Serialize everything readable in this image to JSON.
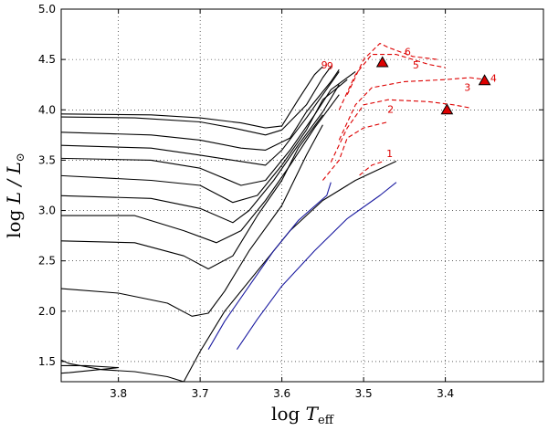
{
  "chart_data": {
    "type": "line",
    "title": "",
    "xlabel_base": "log ",
    "xlabel_var": "T",
    "xlabel_sub": "eff",
    "ylabel_base": "log ",
    "ylabel_var": "L / L",
    "ylabel_sub": "⊙",
    "xlim": [
      3.87,
      3.28
    ],
    "ylim": [
      1.3,
      5.0
    ],
    "grid": true,
    "xticks": [
      3.8,
      3.7,
      3.6,
      3.5,
      3.4
    ],
    "xtick_labels": [
      "3.8",
      "3.7",
      "3.6",
      "3.5",
      "3.4"
    ],
    "yticks": [
      1.5,
      2.0,
      2.5,
      3.0,
      3.5,
      4.0,
      4.5,
      5.0
    ],
    "ytick_labels": [
      "1.5",
      "2.0",
      "2.5",
      "3.0",
      "3.5",
      "4.0",
      "4.5",
      "5.0"
    ],
    "colors": {
      "tracks": "#000000",
      "blue": "#1a1aa0",
      "red": "#dd0000",
      "marker": "#dd0000"
    },
    "series": [
      {
        "name": "track-1",
        "color": "black",
        "points": [
          [
            3.88,
            1.55
          ],
          [
            3.86,
            1.48
          ],
          [
            3.82,
            1.42
          ],
          [
            3.78,
            1.4
          ],
          [
            3.74,
            1.35
          ],
          [
            3.72,
            1.3
          ]
        ]
      },
      {
        "name": "track-2",
        "color": "black",
        "points": [
          [
            3.88,
            1.46
          ],
          [
            3.84,
            1.46
          ],
          [
            3.8,
            1.44
          ],
          [
            3.86,
            1.39
          ],
          [
            3.88,
            1.38
          ]
        ]
      },
      {
        "name": "track-3",
        "color": "black",
        "points": [
          [
            3.88,
            2.23
          ],
          [
            3.8,
            2.18
          ],
          [
            3.74,
            2.08
          ],
          [
            3.71,
            1.95
          ],
          [
            3.69,
            1.98
          ],
          [
            3.67,
            2.2
          ],
          [
            3.64,
            2.6
          ],
          [
            3.6,
            3.05
          ],
          [
            3.57,
            3.55
          ],
          [
            3.55,
            3.85
          ]
        ]
      },
      {
        "name": "track-4",
        "color": "black",
        "points": [
          [
            3.88,
            2.7
          ],
          [
            3.78,
            2.68
          ],
          [
            3.72,
            2.55
          ],
          [
            3.69,
            2.42
          ],
          [
            3.66,
            2.55
          ],
          [
            3.63,
            2.95
          ],
          [
            3.6,
            3.3
          ],
          [
            3.58,
            3.62
          ],
          [
            3.55,
            3.95
          ]
        ]
      },
      {
        "name": "track-5",
        "color": "black",
        "points": [
          [
            3.88,
            2.95
          ],
          [
            3.78,
            2.95
          ],
          [
            3.72,
            2.8
          ],
          [
            3.68,
            2.68
          ],
          [
            3.65,
            2.8
          ],
          [
            3.62,
            3.1
          ],
          [
            3.59,
            3.45
          ],
          [
            3.56,
            3.82
          ],
          [
            3.53,
            4.15
          ]
        ]
      },
      {
        "name": "track-6",
        "color": "black",
        "points": [
          [
            3.88,
            3.15
          ],
          [
            3.76,
            3.12
          ],
          [
            3.7,
            3.02
          ],
          [
            3.66,
            2.88
          ],
          [
            3.64,
            3.0
          ],
          [
            3.61,
            3.3
          ],
          [
            3.58,
            3.65
          ],
          [
            3.55,
            3.98
          ],
          [
            3.53,
            4.25
          ]
        ]
      },
      {
        "name": "track-7",
        "color": "black",
        "points": [
          [
            3.88,
            3.35
          ],
          [
            3.76,
            3.3
          ],
          [
            3.7,
            3.25
          ],
          [
            3.66,
            3.08
          ],
          [
            3.63,
            3.15
          ],
          [
            3.6,
            3.45
          ],
          [
            3.57,
            3.8
          ],
          [
            3.55,
            4.1
          ],
          [
            3.52,
            4.3
          ]
        ]
      },
      {
        "name": "track-8",
        "color": "black",
        "points": [
          [
            3.88,
            3.52
          ],
          [
            3.76,
            3.5
          ],
          [
            3.7,
            3.42
          ],
          [
            3.65,
            3.25
          ],
          [
            3.62,
            3.3
          ],
          [
            3.59,
            3.6
          ],
          [
            3.56,
            3.95
          ],
          [
            3.54,
            4.2
          ],
          [
            3.51,
            4.38
          ]
        ]
      },
      {
        "name": "track-9",
        "color": "black",
        "points": [
          [
            3.88,
            3.65
          ],
          [
            3.76,
            3.62
          ],
          [
            3.7,
            3.55
          ],
          [
            3.66,
            3.5
          ],
          [
            3.62,
            3.45
          ],
          [
            3.6,
            3.6
          ],
          [
            3.57,
            3.92
          ],
          [
            3.55,
            4.15
          ],
          [
            3.53,
            4.38
          ]
        ]
      },
      {
        "name": "track-10",
        "color": "black",
        "points": [
          [
            3.88,
            3.78
          ],
          [
            3.76,
            3.75
          ],
          [
            3.7,
            3.7
          ],
          [
            3.65,
            3.62
          ],
          [
            3.62,
            3.6
          ],
          [
            3.59,
            3.72
          ],
          [
            3.57,
            3.98
          ],
          [
            3.54,
            4.28
          ],
          [
            3.53,
            4.4
          ]
        ]
      },
      {
        "name": "track-11",
        "color": "black",
        "points": [
          [
            3.88,
            3.93
          ],
          [
            3.78,
            3.92
          ],
          [
            3.7,
            3.88
          ],
          [
            3.66,
            3.82
          ],
          [
            3.62,
            3.75
          ],
          [
            3.6,
            3.8
          ],
          [
            3.57,
            4.05
          ],
          [
            3.55,
            4.32
          ],
          [
            3.54,
            4.43
          ]
        ]
      },
      {
        "name": "track-12",
        "color": "black",
        "points": [
          [
            3.88,
            3.96
          ],
          [
            3.76,
            3.95
          ],
          [
            3.7,
            3.92
          ],
          [
            3.65,
            3.87
          ],
          [
            3.62,
            3.82
          ],
          [
            3.6,
            3.84
          ],
          [
            3.58,
            4.1
          ],
          [
            3.56,
            4.35
          ],
          [
            3.55,
            4.43
          ]
        ]
      },
      {
        "name": "track-13",
        "color": "black",
        "points": [
          [
            3.72,
            1.3
          ],
          [
            3.7,
            1.6
          ],
          [
            3.67,
            2.0
          ],
          [
            3.63,
            2.4
          ],
          [
            3.59,
            2.8
          ],
          [
            3.55,
            3.1
          ],
          [
            3.51,
            3.3
          ],
          [
            3.46,
            3.49
          ]
        ]
      },
      {
        "name": "blue-1",
        "color": "blue",
        "points": [
          [
            3.69,
            1.62
          ],
          [
            3.67,
            1.9
          ],
          [
            3.64,
            2.25
          ],
          [
            3.61,
            2.6
          ],
          [
            3.58,
            2.9
          ],
          [
            3.545,
            3.15
          ],
          [
            3.54,
            3.28
          ]
        ]
      },
      {
        "name": "blue-2",
        "color": "blue",
        "points": [
          [
            3.655,
            1.62
          ],
          [
            3.63,
            1.92
          ],
          [
            3.6,
            2.25
          ],
          [
            3.56,
            2.6
          ],
          [
            3.52,
            2.92
          ],
          [
            3.48,
            3.15
          ],
          [
            3.46,
            3.28
          ]
        ]
      },
      {
        "name": "red-1",
        "color": "red",
        "points": [
          [
            3.505,
            3.35
          ],
          [
            3.49,
            3.45
          ],
          [
            3.475,
            3.49
          ]
        ]
      },
      {
        "name": "red-2",
        "color": "red",
        "points": [
          [
            3.55,
            3.3
          ],
          [
            3.53,
            3.5
          ],
          [
            3.52,
            3.72
          ],
          [
            3.5,
            3.82
          ],
          [
            3.47,
            3.88
          ]
        ]
      },
      {
        "name": "red-3",
        "color": "red",
        "points": [
          [
            3.54,
            3.48
          ],
          [
            3.52,
            3.82
          ],
          [
            3.5,
            4.05
          ],
          [
            3.47,
            4.1
          ],
          [
            3.42,
            4.08
          ],
          [
            3.39,
            4.05
          ],
          [
            3.37,
            4.02
          ]
        ]
      },
      {
        "name": "red-4",
        "color": "red",
        "points": [
          [
            3.53,
            3.7
          ],
          [
            3.51,
            4.05
          ],
          [
            3.49,
            4.22
          ],
          [
            3.45,
            4.28
          ],
          [
            3.4,
            4.3
          ],
          [
            3.37,
            4.32
          ],
          [
            3.35,
            4.3
          ]
        ]
      },
      {
        "name": "red-5",
        "color": "red",
        "points": [
          [
            3.53,
            4.0
          ],
          [
            3.51,
            4.35
          ],
          [
            3.49,
            4.55
          ],
          [
            3.46,
            4.55
          ],
          [
            3.42,
            4.45
          ],
          [
            3.4,
            4.42
          ]
        ]
      },
      {
        "name": "red-6",
        "color": "red",
        "points": [
          [
            3.52,
            4.15
          ],
          [
            3.5,
            4.5
          ],
          [
            3.48,
            4.66
          ],
          [
            3.47,
            4.62
          ],
          [
            3.44,
            4.53
          ],
          [
            3.41,
            4.5
          ]
        ]
      }
    ],
    "markers": [
      {
        "x": 3.477,
        "y": 4.47
      },
      {
        "x": 3.398,
        "y": 4.0
      },
      {
        "x": 3.352,
        "y": 4.29
      }
    ],
    "annotations": [
      {
        "text": "1",
        "x": 3.472,
        "y": 3.53
      },
      {
        "text": "2",
        "x": 3.471,
        "y": 3.97
      },
      {
        "text": "3",
        "x": 3.377,
        "y": 4.19
      },
      {
        "text": "4",
        "x": 3.345,
        "y": 4.28
      },
      {
        "text": "5",
        "x": 3.44,
        "y": 4.41
      },
      {
        "text": "6",
        "x": 3.45,
        "y": 4.54
      },
      {
        "text": "9",
        "x": 3.552,
        "y": 4.41
      },
      {
        "text": "9",
        "x": 3.545,
        "y": 4.4
      }
    ]
  }
}
